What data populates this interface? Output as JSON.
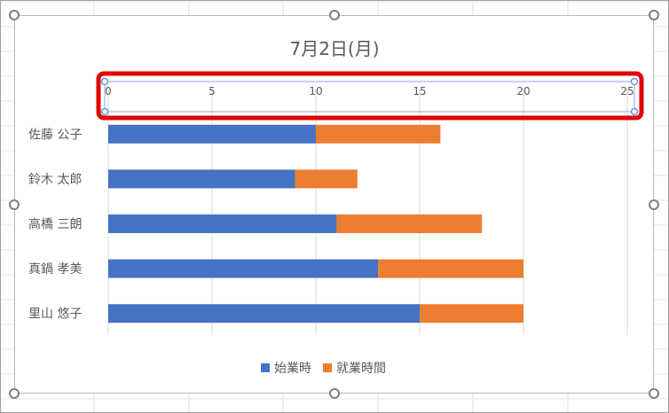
{
  "chart_data": {
    "type": "bar",
    "orientation": "horizontal",
    "stacked": true,
    "title": "7月2日(月)",
    "categories": [
      "佐藤 公子",
      "鈴木 太郎",
      "高橋 三朗",
      "真鍋 孝美",
      "里山 悠子"
    ],
    "series": [
      {
        "name": "始業時",
        "color": "#4472c4",
        "values": [
          10,
          9,
          11,
          13,
          15
        ]
      },
      {
        "name": "就業時間",
        "color": "#ed7d31",
        "values": [
          6,
          3,
          7,
          7,
          5
        ]
      }
    ],
    "xlim": [
      0,
      25
    ],
    "xticks": [
      0,
      5,
      10,
      15,
      20,
      25
    ],
    "x_axis_position": "top",
    "grid": true,
    "legend_position": "bottom",
    "axis_highlight_color": "#e00000"
  }
}
